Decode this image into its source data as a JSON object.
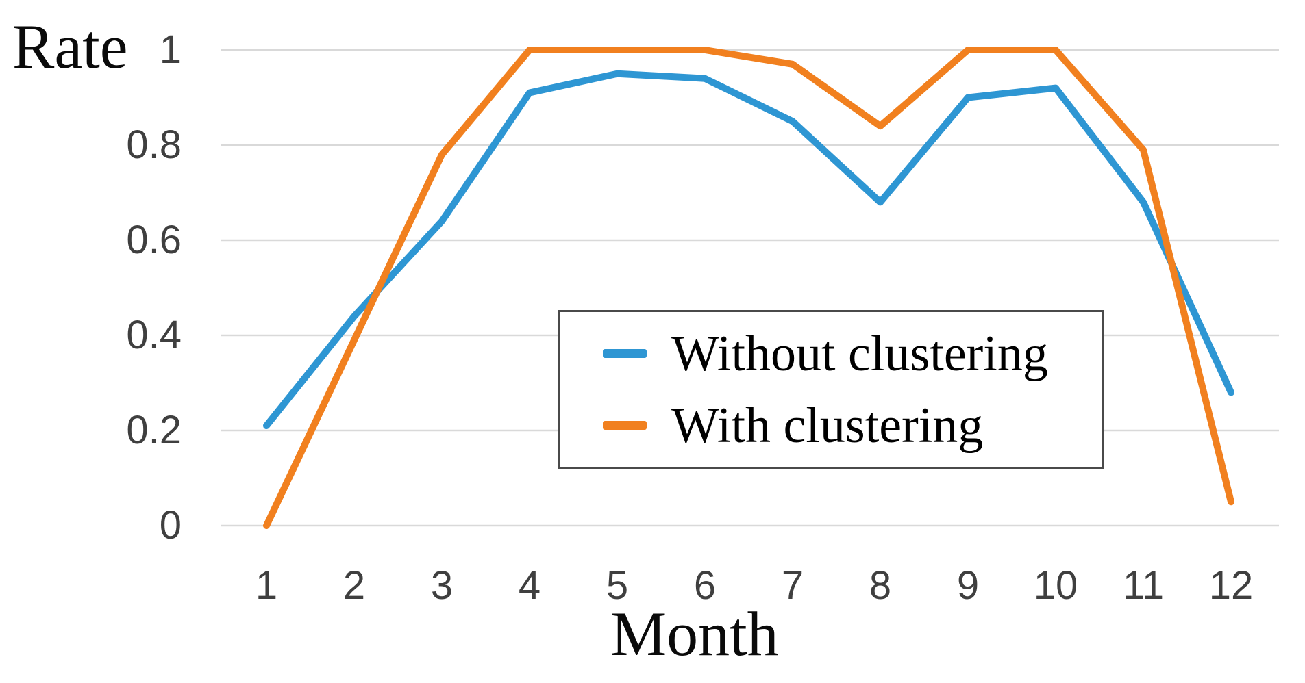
{
  "chart_data": {
    "type": "line",
    "title": "",
    "ylabel": "Rate",
    "xlabel": "Month",
    "categories": [
      "1",
      "2",
      "3",
      "4",
      "5",
      "6",
      "7",
      "8",
      "9",
      "10",
      "11",
      "12"
    ],
    "yticks": [
      "0",
      "0.2",
      "0.4",
      "0.6",
      "0.8",
      "1"
    ],
    "ylim": [
      0,
      1
    ],
    "grid": "horizontal",
    "grid_color": "#d9d9d9",
    "tick_label_color": "#3f3f3f",
    "legend_position": "inside-center-right",
    "legend_border_color": "#4a4a4a",
    "series": [
      {
        "name": "Without clustering",
        "color": "#2e96d3",
        "values": [
          0.21,
          0.44,
          0.64,
          0.91,
          0.95,
          0.94,
          0.85,
          0.68,
          0.9,
          0.92,
          0.68,
          0.28
        ]
      },
      {
        "name": "With clustering",
        "color": "#f1801f",
        "values": [
          0.0,
          0.39,
          0.78,
          1.0,
          1.0,
          1.0,
          0.97,
          0.84,
          1.0,
          1.0,
          0.79,
          0.05
        ]
      }
    ]
  }
}
